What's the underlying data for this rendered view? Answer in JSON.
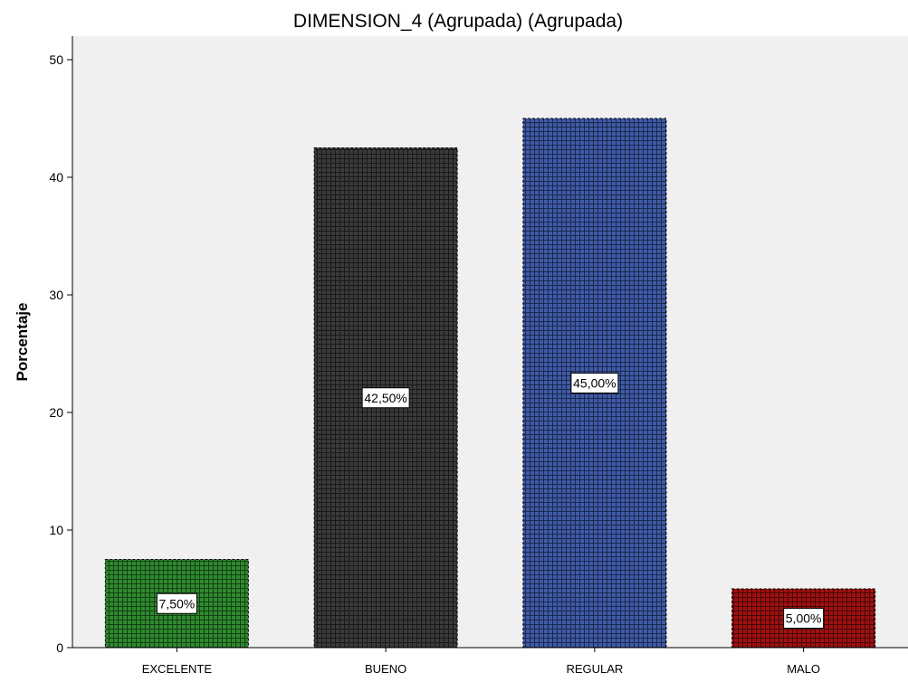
{
  "chart_data": {
    "type": "bar",
    "title": "DIMENSION_4 (Agrupada) (Agrupada)",
    "xlabel": "",
    "ylabel": "Porcentaje",
    "ylim": [
      0,
      52
    ],
    "yticks": [
      0,
      10,
      20,
      30,
      40,
      50
    ],
    "grid": false,
    "categories": [
      "EXCELENTE",
      "BUENO",
      "REGULAR",
      "MALO"
    ],
    "values": [
      7.5,
      42.5,
      45.0,
      5.0
    ],
    "data_labels": [
      "7,50%",
      "42,50%",
      "45,00%",
      "5,00%"
    ],
    "colors": [
      "#2e8b2e",
      "#3a3a3a",
      "#3f5aa8",
      "#a01010"
    ],
    "plot_background": "#f0f0f0"
  }
}
